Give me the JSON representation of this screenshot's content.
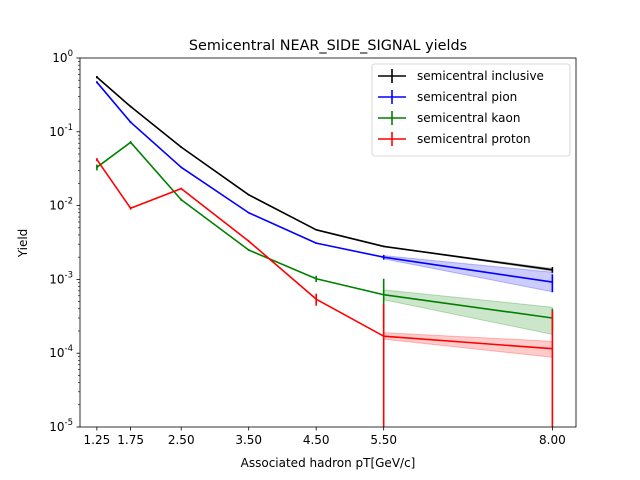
{
  "chart_data": {
    "type": "line",
    "title": "Semicentral NEAR_SIDE_SIGNAL yields",
    "xlabel": "Associated hadron pT[GeV/c]",
    "ylabel": "Yield",
    "x": [
      1.25,
      1.75,
      2.5,
      3.5,
      4.5,
      5.5,
      8.0
    ],
    "xticks": [
      1.25,
      1.75,
      2.5,
      3.5,
      4.5,
      5.5,
      8.0
    ],
    "xtick_labels": [
      "1.25",
      "1.75",
      "2.50",
      "3.50",
      "4.50",
      "5.50",
      "8.00"
    ],
    "xlim": [
      1.0,
      8.35
    ],
    "yscale": "log",
    "ylim": [
      1e-05,
      1
    ],
    "yticks": [
      1e-05,
      0.0001,
      0.001,
      0.01,
      0.1,
      1
    ],
    "ytick_exponents": [
      "-5",
      "-4",
      "-3",
      "-2",
      "-1",
      "0"
    ],
    "ytick_base": "10",
    "legend_position": "top-right",
    "grid": false,
    "series": [
      {
        "name": "semicentral inclusive",
        "color": "#000000",
        "values": [
          0.55,
          0.22,
          0.062,
          0.014,
          0.0047,
          0.0028,
          0.00135
        ],
        "errors": [
          0.02,
          0.006,
          0.0015,
          0.0003,
          0.0001,
          6e-05,
          0.00012
        ],
        "band_lower": [
          null,
          null,
          null,
          null,
          null,
          0.0028,
          0.0013
        ],
        "band_upper": [
          null,
          null,
          null,
          null,
          null,
          0.0028,
          0.0014
        ],
        "band_color": "#000000"
      },
      {
        "name": "semicentral pion",
        "color": "#0000ff",
        "values": [
          0.47,
          0.135,
          0.033,
          0.008,
          0.0031,
          0.002,
          0.00092
        ],
        "errors": [
          0.015,
          0.004,
          0.0008,
          0.0002,
          7e-05,
          0.00015,
          0.00025
        ],
        "band_lower": [
          null,
          null,
          null,
          null,
          null,
          0.0019,
          0.00068
        ],
        "band_upper": [
          null,
          null,
          null,
          null,
          null,
          0.0021,
          0.00125
        ],
        "band_color": "#0000ff"
      },
      {
        "name": "semicentral kaon",
        "color": "#008000",
        "values": [
          0.033,
          0.072,
          0.012,
          0.0025,
          0.00102,
          0.00062,
          0.0003
        ],
        "errors": [
          0.003,
          0.003,
          0.0004,
          6e-05,
          0.0001,
          0.0004,
          0.0001
        ],
        "band_lower": [
          null,
          null,
          null,
          null,
          null,
          0.00053,
          0.00018
        ],
        "band_upper": [
          null,
          null,
          null,
          null,
          null,
          0.00072,
          0.00042
        ],
        "band_color": "#008000"
      },
      {
        "name": "semicentral proton",
        "color": "#ff0000",
        "values": [
          0.042,
          0.0092,
          0.017,
          0.0033,
          0.00054,
          0.00017,
          0.000115
        ],
        "errors": [
          0.002,
          0.0004,
          0.0005,
          0.0001,
          0.0001,
          0.00029,
          0.00026
        ],
        "band_lower": [
          null,
          null,
          null,
          null,
          null,
          0.000155,
          8.8e-05
        ],
        "band_upper": [
          null,
          null,
          null,
          null,
          null,
          0.00019,
          0.000145
        ],
        "band_color": "#ff0000"
      }
    ]
  }
}
